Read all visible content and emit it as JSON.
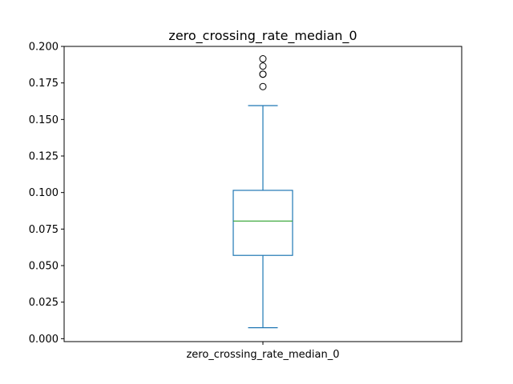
{
  "chart_data": {
    "type": "box",
    "title": "zero_crossing_rate_median_0",
    "xlabel": "",
    "ylabel": "",
    "categories": [
      "zero_crossing_rate_median_0"
    ],
    "ylim": [
      -0.002,
      0.2
    ],
    "yticks": [
      0.0,
      0.025,
      0.05,
      0.075,
      0.1,
      0.125,
      0.15,
      0.175,
      0.2
    ],
    "ytick_labels": [
      "0.000",
      "0.025",
      "0.050",
      "0.075",
      "0.100",
      "0.125",
      "0.150",
      "0.175",
      "0.200"
    ],
    "grid": false,
    "legend": "none",
    "box": {
      "whisker_low": 0.0075,
      "q1": 0.057,
      "median": 0.0805,
      "q3": 0.1015,
      "whisker_high": 0.1595,
      "outliers": [
        0.1725,
        0.181,
        0.181,
        0.1865,
        0.1915
      ]
    },
    "colors": {
      "box": "#1f77b4",
      "median": "#2ca02c",
      "axes": "#000000"
    }
  }
}
